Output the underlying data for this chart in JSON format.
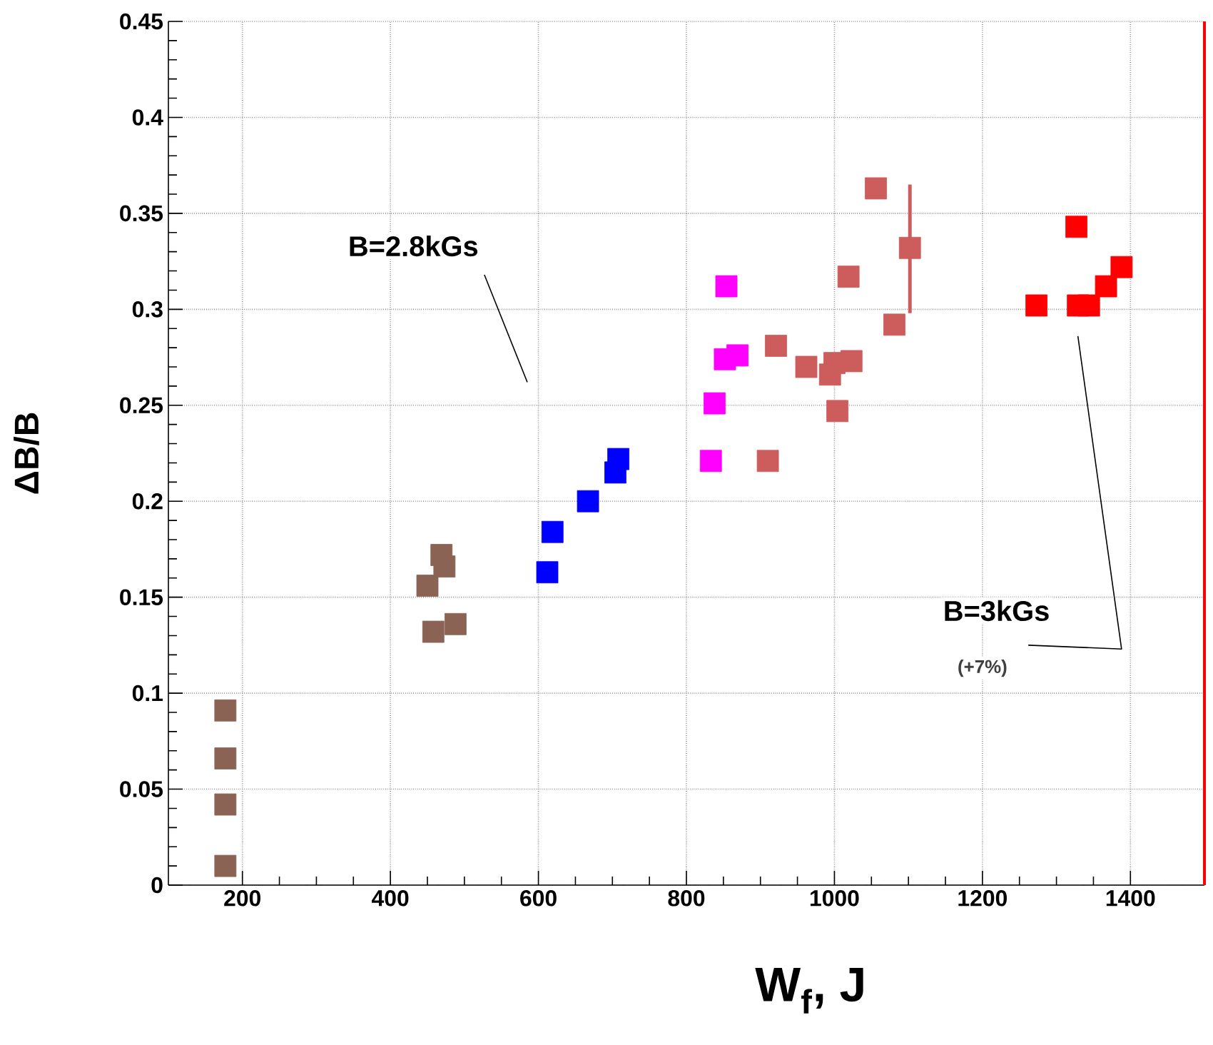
{
  "chart_data": {
    "type": "scatter",
    "xlabel": "W$_{f}$, J",
    "ylabel": "ΔB/B",
    "xlim": [
      100,
      1500
    ],
    "ylim": [
      0,
      0.45
    ],
    "xticks": [
      200,
      400,
      600,
      800,
      1000,
      1200,
      1400
    ],
    "yticks": [
      0,
      0.05,
      0.1,
      0.15,
      0.2,
      0.25,
      0.3,
      0.35,
      0.4,
      0.45
    ],
    "grid": true,
    "marker": "square",
    "annotations": [
      "B=2.8kGs",
      "B=3kGs",
      "(+7%)"
    ],
    "ref_lines": [
      {
        "axis": "x",
        "value": 1500,
        "color": "#ff0000"
      }
    ],
    "series": [
      {
        "color": "#8b6355",
        "x": [
          177,
          177,
          177,
          177,
          469,
          473,
          450,
          458,
          488
        ],
        "values": [
          0.091,
          0.066,
          0.042,
          0.01,
          0.172,
          0.166,
          0.156,
          0.132,
          0.136
        ]
      },
      {
        "color": "#0000ff",
        "x": [
          619,
          612,
          667,
          704,
          708
        ],
        "values": [
          0.184,
          0.163,
          0.2,
          0.215,
          0.222
        ]
      },
      {
        "color": "#ff00ff",
        "x": [
          854,
          852,
          869,
          838,
          833
        ],
        "values": [
          0.312,
          0.274,
          0.276,
          0.251,
          0.221
        ]
      },
      {
        "color": "#cd5c5c",
        "x": [
          1056,
          1102,
          1019,
          1081,
          921,
          962,
          1023,
          1000,
          994,
          1004,
          910
        ],
        "values": [
          0.363,
          0.332,
          0.317,
          0.292,
          0.281,
          0.27,
          0.273,
          0.272,
          0.266,
          0.247,
          0.221
        ],
        "errors": [
          null,
          [
            0.298,
            0.365
          ],
          null,
          null,
          null,
          null,
          null,
          null,
          null,
          null,
          null
        ]
      },
      {
        "color": "#ff0000",
        "x": [
          1273,
          1327,
          1329,
          1344,
          1367,
          1388
        ],
        "values": [
          0.302,
          0.343,
          0.302,
          0.302,
          0.312,
          0.322
        ]
      }
    ]
  }
}
